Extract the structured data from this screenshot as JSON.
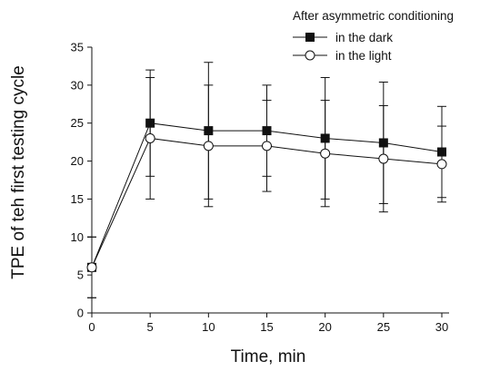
{
  "chart_data": {
    "type": "line",
    "xlabel": "Time, min",
    "ylabel": "TPE of teh first testing cycle",
    "xlim": [
      0,
      30
    ],
    "ylim": [
      0,
      35
    ],
    "x_ticks": [
      0,
      5,
      10,
      15,
      20,
      25,
      30
    ],
    "y_ticks": [
      0,
      5,
      10,
      15,
      20,
      25,
      30,
      35
    ],
    "x": [
      0,
      5,
      10,
      15,
      20,
      25,
      30
    ],
    "grid": false,
    "legend": {
      "title": "After asymmetric conditioning",
      "placement": "top-right"
    },
    "series": [
      {
        "name": "in the dark",
        "marker": "filled-square",
        "color": "#111111",
        "values": [
          6,
          25,
          24,
          24,
          23,
          22.4,
          21.2
        ],
        "error": [
          4,
          7,
          9,
          6,
          8,
          8,
          6
        ]
      },
      {
        "name": "in the light",
        "marker": "open-circle",
        "color": "#111111",
        "values": [
          6,
          23,
          22,
          22,
          21,
          20.3,
          19.6
        ],
        "error": [
          4,
          8,
          8,
          6,
          7,
          7,
          5
        ]
      }
    ]
  }
}
